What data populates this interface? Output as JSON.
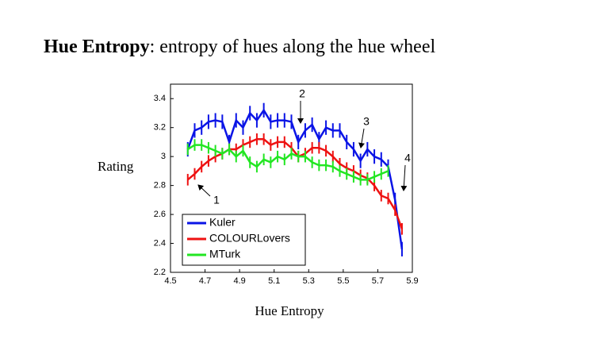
{
  "chart_data": {
    "type": "line",
    "title_parts": [
      "Hue Entropy",
      ": entropy of hues along the hue wheel"
    ],
    "x_label": "Hue Entropy",
    "y_label": "Rating",
    "x": [
      4.6,
      4.64,
      4.68,
      4.72,
      4.76,
      4.8,
      4.84,
      4.88,
      4.92,
      4.96,
      5.0,
      5.04,
      5.08,
      5.12,
      5.16,
      5.2,
      5.24,
      5.28,
      5.32,
      5.36,
      5.4,
      5.44,
      5.48,
      5.52,
      5.56,
      5.6,
      5.64,
      5.68,
      5.72,
      5.76,
      5.8,
      5.84
    ],
    "series": [
      {
        "name": "Kuler",
        "color": "#0a14e6",
        "error": 0.05,
        "values": [
          3.05,
          3.18,
          3.2,
          3.24,
          3.25,
          3.24,
          3.1,
          3.25,
          3.2,
          3.3,
          3.25,
          3.32,
          3.24,
          3.25,
          3.25,
          3.24,
          3.1,
          3.18,
          3.22,
          3.12,
          3.2,
          3.18,
          3.18,
          3.1,
          3.05,
          2.97,
          3.05,
          3.0,
          2.98,
          2.93,
          2.7,
          2.36
        ]
      },
      {
        "name": "COLOURLovers",
        "color": "#ee1111",
        "error": 0.04,
        "values": [
          2.84,
          2.88,
          2.93,
          2.97,
          3.0,
          3.02,
          3.05,
          3.05,
          3.08,
          3.1,
          3.12,
          3.12,
          3.08,
          3.1,
          3.1,
          3.06,
          3.0,
          3.02,
          3.06,
          3.06,
          3.04,
          3.0,
          2.95,
          2.92,
          2.9,
          2.87,
          2.85,
          2.8,
          2.73,
          2.71,
          2.63,
          2.5
        ]
      },
      {
        "name": "MTurk",
        "color": "#22e622",
        "error": 0.04,
        "values": [
          3.05,
          3.08,
          3.08,
          3.06,
          3.04,
          3.02,
          3.05,
          3.0,
          3.04,
          2.96,
          2.93,
          2.98,
          2.96,
          3.0,
          2.98,
          3.02,
          3.0,
          3.0,
          2.96,
          2.94,
          2.94,
          2.93,
          2.9,
          2.88,
          2.86,
          2.84,
          2.84,
          2.86,
          2.88,
          2.9,
          null,
          null
        ]
      }
    ],
    "xlim": [
      4.5,
      5.9
    ],
    "xticks": [
      4.5,
      4.7,
      4.9,
      5.1,
      5.3,
      5.5,
      5.7,
      5.9
    ],
    "ylim": [
      2.2,
      3.5
    ],
    "yticks": [
      2.2,
      2.4,
      2.6,
      2.8,
      3,
      3.2,
      3.4
    ],
    "legend": "lower left",
    "annotations": [
      "1",
      "2",
      "3",
      "4"
    ]
  }
}
